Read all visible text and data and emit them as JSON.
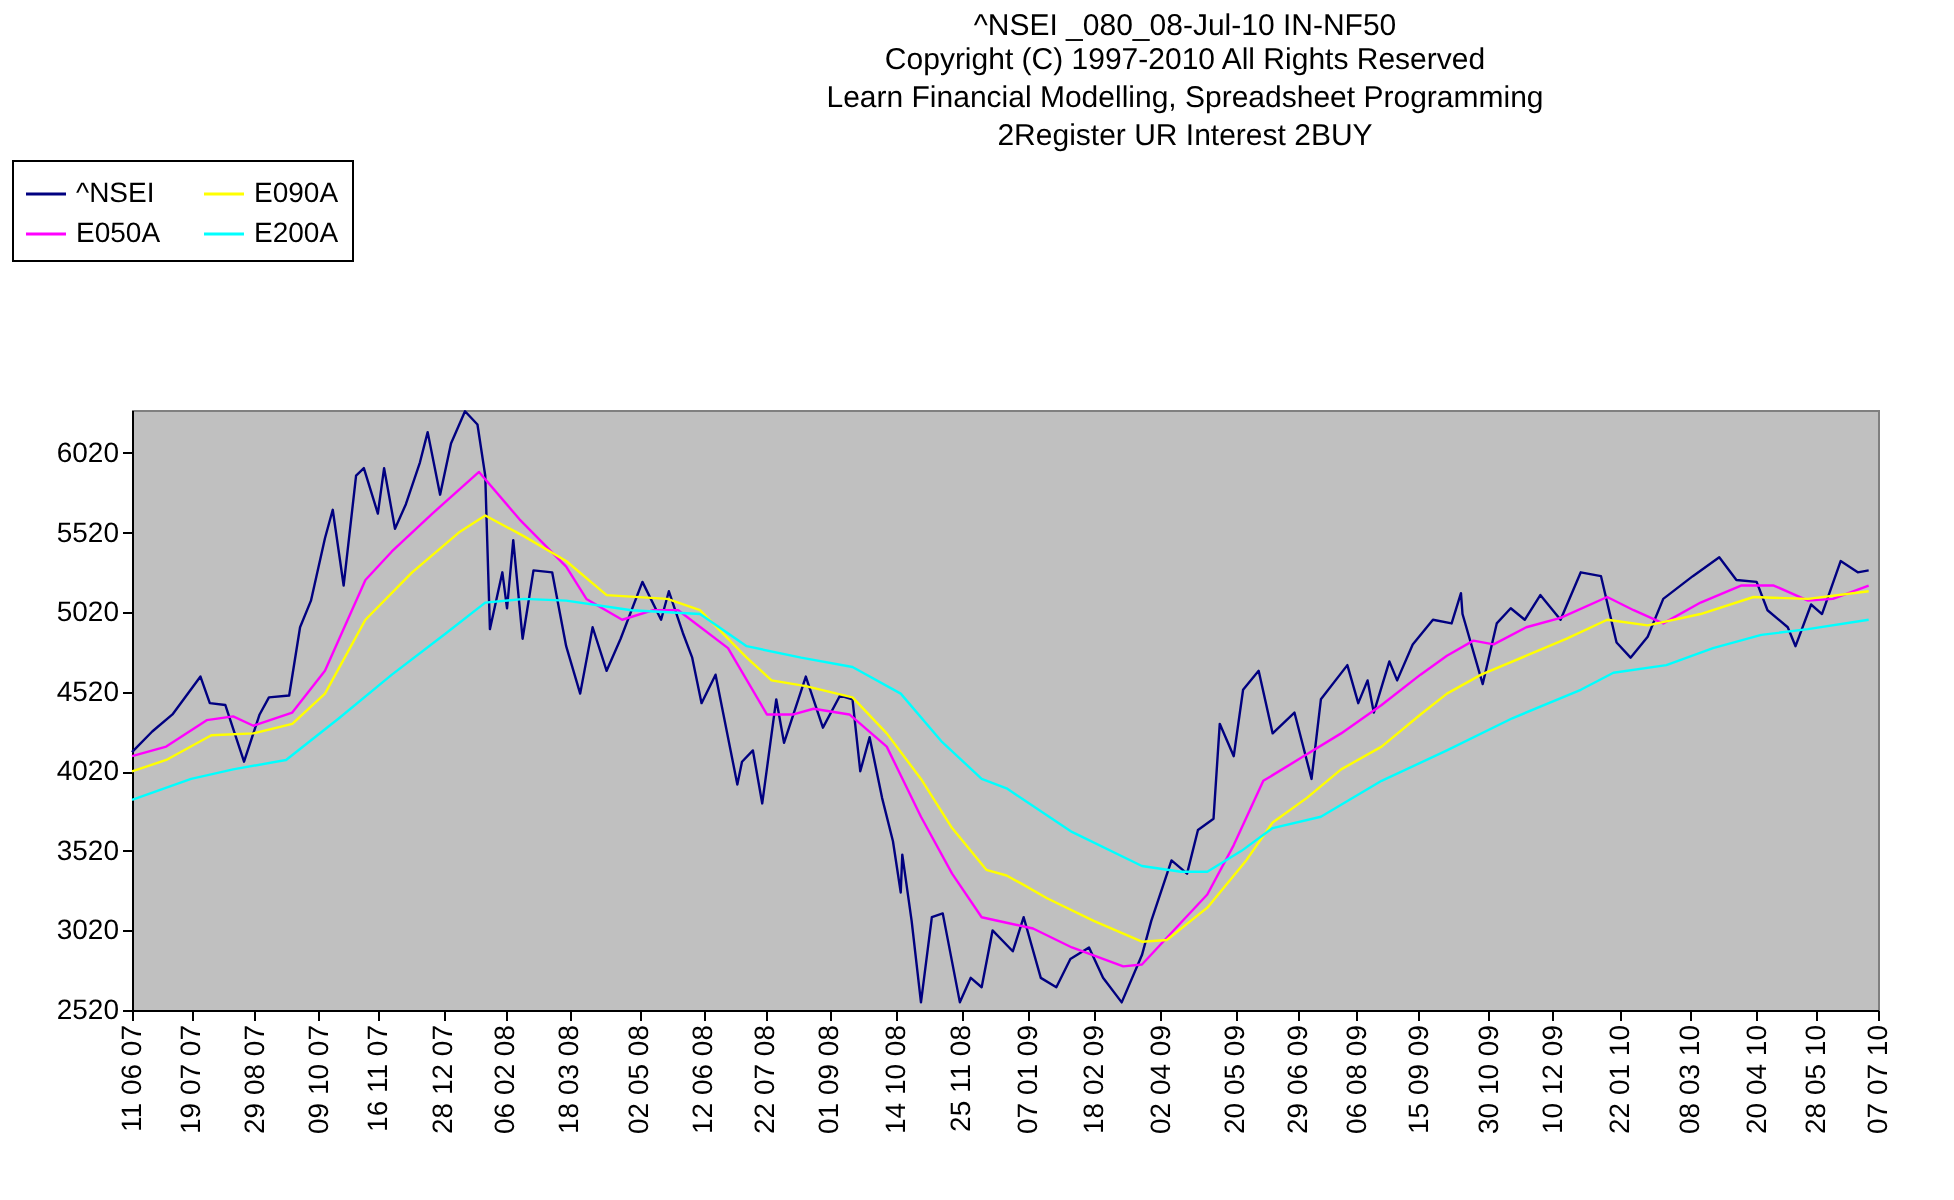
{
  "chart_data": {
    "type": "line",
    "title": "^NSEI    _080_08-Jul-10 IN-NF50",
    "subtitle": "Copyright (C) 1997-2010 All Rights Reserved\nLearn Financial Modelling, Spreadsheet Programming\n2Register UR Interest 2BUY",
    "legend": "top left",
    "xlim": [
      "2007-06-11",
      "2010-07-07"
    ],
    "xticks": [
      {
        "value": "2007-06-11",
        "label": "11 06 07"
      },
      {
        "value": "2007-07-19",
        "label": "19 07 07"
      },
      {
        "value": "2007-08-29",
        "label": "29 08 07"
      },
      {
        "value": "2007-10-09",
        "label": "09 10 07"
      },
      {
        "value": "2007-11-16",
        "label": "16 11 07"
      },
      {
        "value": "2007-12-28",
        "label": "28 12 07"
      },
      {
        "value": "2008-02-06",
        "label": "06 02 08"
      },
      {
        "value": "2008-03-18",
        "label": "18 03 08"
      },
      {
        "value": "2008-05-02",
        "label": "02 05 08"
      },
      {
        "value": "2008-06-12",
        "label": "12 06 08"
      },
      {
        "value": "2008-07-22",
        "label": "22 07 08"
      },
      {
        "value": "2008-09-01",
        "label": "01 09 08"
      },
      {
        "value": "2008-10-14",
        "label": "14 10 08"
      },
      {
        "value": "2008-11-25",
        "label": "25 11 08"
      },
      {
        "value": "2009-01-07",
        "label": "07 01 09"
      },
      {
        "value": "2009-02-18",
        "label": "18 02 09"
      },
      {
        "value": "2009-04-02",
        "label": "02 04 09"
      },
      {
        "value": "2009-05-20",
        "label": "20 05 09"
      },
      {
        "value": "2009-06-29",
        "label": "29 06 09"
      },
      {
        "value": "2009-08-06",
        "label": "06 08 09"
      },
      {
        "value": "2009-09-15",
        "label": "15 09 09"
      },
      {
        "value": "2009-10-30",
        "label": "30 10 09"
      },
      {
        "value": "2009-12-10",
        "label": "10 12 09"
      },
      {
        "value": "2010-01-22",
        "label": "22 01 10"
      },
      {
        "value": "2010-03-08",
        "label": "08 03 10"
      },
      {
        "value": "2010-04-20",
        "label": "20 04 10"
      },
      {
        "value": "2010-05-28",
        "label": "28 05 10"
      },
      {
        "value": "2010-07-07",
        "label": "07 07 10"
      }
    ],
    "ylim": [
      2520,
      6290
    ],
    "yticks": [
      2520,
      3020,
      3520,
      4020,
      4520,
      5020,
      5520,
      6020
    ],
    "series": [
      {
        "name": "^NSEI",
        "color": "#000080",
        "x": [
          "2007-06-11",
          "2007-06-24",
          "2007-07-07",
          "2007-07-25",
          "2007-07-31",
          "2007-08-10",
          "2007-08-22",
          "2007-09-01",
          "2007-09-07",
          "2007-09-20",
          "2007-09-27",
          "2007-10-04",
          "2007-10-13",
          "2007-10-18",
          "2007-10-25",
          "2007-11-02",
          "2007-11-07",
          "2007-11-16",
          "2007-11-20",
          "2007-11-27",
          "2007-12-04",
          "2007-12-13",
          "2007-12-18",
          "2007-12-26",
          "2008-01-02",
          "2008-01-11",
          "2008-01-19",
          "2008-01-24",
          "2008-01-27",
          "2008-02-04",
          "2008-02-07",
          "2008-02-11",
          "2008-02-17",
          "2008-02-24",
          "2008-03-07",
          "2008-03-16",
          "2008-03-25",
          "2008-04-02",
          "2008-04-11",
          "2008-04-20",
          "2008-05-04",
          "2008-05-16",
          "2008-05-21",
          "2008-05-30",
          "2008-06-05",
          "2008-06-11",
          "2008-06-20",
          "2008-07-04",
          "2008-07-07",
          "2008-07-14",
          "2008-07-20",
          "2008-07-29",
          "2008-08-03",
          "2008-08-17",
          "2008-08-28",
          "2008-09-08",
          "2008-09-16",
          "2008-09-21",
          "2008-09-27",
          "2008-10-05",
          "2008-10-12",
          "2008-10-17",
          "2008-10-18",
          "2008-10-24",
          "2008-10-30",
          "2008-11-06",
          "2008-11-13",
          "2008-11-24",
          "2008-12-01",
          "2008-12-08",
          "2008-12-15",
          "2008-12-28",
          "2009-01-04",
          "2009-01-15",
          "2009-01-25",
          "2009-02-03",
          "2009-02-15",
          "2009-02-24",
          "2009-03-08",
          "2009-03-21",
          "2009-03-27",
          "2009-04-09",
          "2009-04-19",
          "2009-04-26",
          "2009-05-06",
          "2009-05-10",
          "2009-05-19",
          "2009-05-25",
          "2009-06-04",
          "2009-06-13",
          "2009-06-27",
          "2009-07-08",
          "2009-07-14",
          "2009-07-31",
          "2009-08-07",
          "2009-08-13",
          "2009-08-17",
          "2009-08-27",
          "2009-09-01",
          "2009-09-11",
          "2009-09-24",
          "2009-10-06",
          "2009-10-12",
          "2009-10-13",
          "2009-10-26",
          "2009-11-04",
          "2009-11-13",
          "2009-11-22",
          "2009-12-02",
          "2009-12-15",
          "2009-12-28",
          "2010-01-10",
          "2010-01-20",
          "2010-01-29",
          "2010-02-09",
          "2010-02-19",
          "2010-03-10",
          "2010-03-27",
          "2010-04-07",
          "2010-04-20",
          "2010-04-27",
          "2010-05-10",
          "2010-05-15",
          "2010-05-25",
          "2010-06-01",
          "2010-06-13",
          "2010-06-24",
          "2010-07-01"
        ],
        "values": [
          4140,
          4270,
          4377,
          4615,
          4448,
          4436,
          4080,
          4377,
          4484,
          4496,
          4925,
          5092,
          5484,
          5663,
          5187,
          5877,
          5925,
          5639,
          5925,
          5544,
          5698,
          5960,
          6151,
          5758,
          6080,
          6282,
          6199,
          5877,
          4913,
          5270,
          5044,
          5472,
          4853,
          5282,
          5270,
          4806,
          4508,
          4925,
          4651,
          4853,
          5210,
          4972,
          5151,
          4889,
          4734,
          4448,
          4627,
          3937,
          4080,
          4151,
          3818,
          4472,
          4199,
          4615,
          4294,
          4496,
          4472,
          4020,
          4234,
          3853,
          3580,
          3258,
          3496,
          3080,
          2568,
          3103,
          3127,
          2568,
          2722,
          2663,
          3020,
          2889,
          3103,
          2722,
          2663,
          2841,
          2913,
          2722,
          2568,
          2865,
          3080,
          3460,
          3377,
          3651,
          3722,
          4318,
          4115,
          4532,
          4651,
          4258,
          4389,
          3972,
          4472,
          4687,
          4448,
          4591,
          4389,
          4710,
          4591,
          4817,
          4972,
          4949,
          5139,
          5008,
          4568,
          4949,
          5044,
          4972,
          5127,
          4972,
          5270,
          5246,
          4829,
          4734,
          4865,
          5103,
          5246,
          5365,
          5222,
          5210,
          5032,
          4925,
          4806,
          5068,
          5008,
          5341,
          5270,
          5282
        ]
      },
      {
        "name": "E050A",
        "color": "#ff00ff",
        "x": [
          "2007-06-11",
          "2007-07-03",
          "2007-07-29",
          "2007-08-15",
          "2007-08-28",
          "2007-09-22",
          "2007-10-13",
          "2007-11-08",
          "2007-11-25",
          "2007-12-21",
          "2008-01-20",
          "2008-02-15",
          "2008-03-16",
          "2008-03-29",
          "2008-04-21",
          "2008-05-11",
          "2008-05-27",
          "2008-06-28",
          "2008-07-23",
          "2008-08-09",
          "2008-08-22",
          "2008-09-14",
          "2008-10-08",
          "2008-10-30",
          "2008-11-19",
          "2008-12-08",
          "2008-12-24",
          "2009-01-10",
          "2009-02-04",
          "2009-03-09",
          "2009-03-21",
          "2009-04-15",
          "2009-05-02",
          "2009-05-19",
          "2009-06-07",
          "2009-07-01",
          "2009-07-27",
          "2009-08-22",
          "2009-09-16",
          "2009-10-03",
          "2009-10-20",
          "2009-11-02",
          "2009-11-23",
          "2009-12-15",
          "2010-01-14",
          "2010-01-31",
          "2010-02-19",
          "2010-03-15",
          "2010-04-10",
          "2010-05-01",
          "2010-05-23",
          "2010-06-08",
          "2010-07-01"
        ],
        "values": [
          4115,
          4175,
          4341,
          4365,
          4306,
          4389,
          4651,
          5222,
          5401,
          5639,
          5901,
          5603,
          5306,
          5103,
          4972,
          5032,
          5032,
          4794,
          4377,
          4377,
          4413,
          4377,
          4175,
          3734,
          3377,
          3103,
          3068,
          3032,
          2913,
          2794,
          2806,
          3068,
          3246,
          3556,
          3960,
          4103,
          4258,
          4436,
          4627,
          4746,
          4841,
          4817,
          4925,
          4984,
          5115,
          5032,
          4949,
          5080,
          5187,
          5187,
          5092,
          5103,
          5187
        ]
      },
      {
        "name": "E090A",
        "color": "#ffff00",
        "x": [
          "2007-06-11",
          "2007-07-03",
          "2007-08-01",
          "2007-08-28",
          "2007-09-22",
          "2007-10-13",
          "2007-11-08",
          "2007-12-08",
          "2008-01-07",
          "2008-01-24",
          "2008-02-18",
          "2008-03-16",
          "2008-04-11",
          "2008-05-20",
          "2008-06-10",
          "2008-07-10",
          "2008-07-26",
          "2008-08-17",
          "2008-09-16",
          "2008-10-08",
          "2008-10-30",
          "2008-11-19",
          "2008-12-11",
          "2008-12-24",
          "2009-01-04",
          "2009-01-19",
          "2009-02-18",
          "2009-03-21",
          "2009-04-06",
          "2009-05-02",
          "2009-05-27",
          "2009-06-13",
          "2009-07-05",
          "2009-07-27",
          "2009-08-22",
          "2009-09-16",
          "2009-10-03",
          "2009-10-25",
          "2009-11-23",
          "2009-12-19",
          "2010-01-14",
          "2010-02-09",
          "2010-03-15",
          "2010-04-18",
          "2010-05-23",
          "2010-07-01"
        ],
        "values": [
          4020,
          4091,
          4246,
          4258,
          4318,
          4508,
          4972,
          5270,
          5520,
          5627,
          5496,
          5341,
          5127,
          5103,
          5032,
          4734,
          4591,
          4555,
          4484,
          4258,
          3972,
          3663,
          3401,
          3365,
          3306,
          3222,
          3080,
          2949,
          2960,
          3163,
          3460,
          3698,
          3853,
          4032,
          4175,
          4377,
          4508,
          4627,
          4746,
          4853,
          4972,
          4937,
          5008,
          5115,
          5103,
          5151
        ]
      },
      {
        "name": "E200A",
        "color": "#00ffff",
        "x": [
          "2007-06-11",
          "2007-07-19",
          "2007-08-15",
          "2007-09-18",
          "2007-10-22",
          "2007-11-25",
          "2007-12-30",
          "2008-01-24",
          "2008-02-18",
          "2008-03-16",
          "2008-04-27",
          "2008-06-10",
          "2008-07-10",
          "2008-08-14",
          "2008-09-16",
          "2008-10-17",
          "2008-11-12",
          "2008-12-08",
          "2008-12-24",
          "2009-01-04",
          "2009-02-04",
          "2009-03-21",
          "2009-04-15",
          "2009-05-02",
          "2009-05-24",
          "2009-06-13",
          "2009-07-14",
          "2009-08-22",
          "2009-10-03",
          "2009-11-14",
          "2009-12-28",
          "2010-01-18",
          "2010-02-21",
          "2010-03-23",
          "2010-04-23",
          "2010-05-23",
          "2010-07-01"
        ],
        "values": [
          3841,
          3972,
          4032,
          4091,
          4353,
          4627,
          4889,
          5080,
          5103,
          5092,
          5032,
          5008,
          4806,
          4734,
          4675,
          4508,
          4210,
          3972,
          3913,
          3841,
          3639,
          3425,
          3389,
          3389,
          3520,
          3663,
          3734,
          3960,
          4151,
          4353,
          4532,
          4639,
          4687,
          4794,
          4877,
          4913,
          4972
        ]
      }
    ]
  }
}
